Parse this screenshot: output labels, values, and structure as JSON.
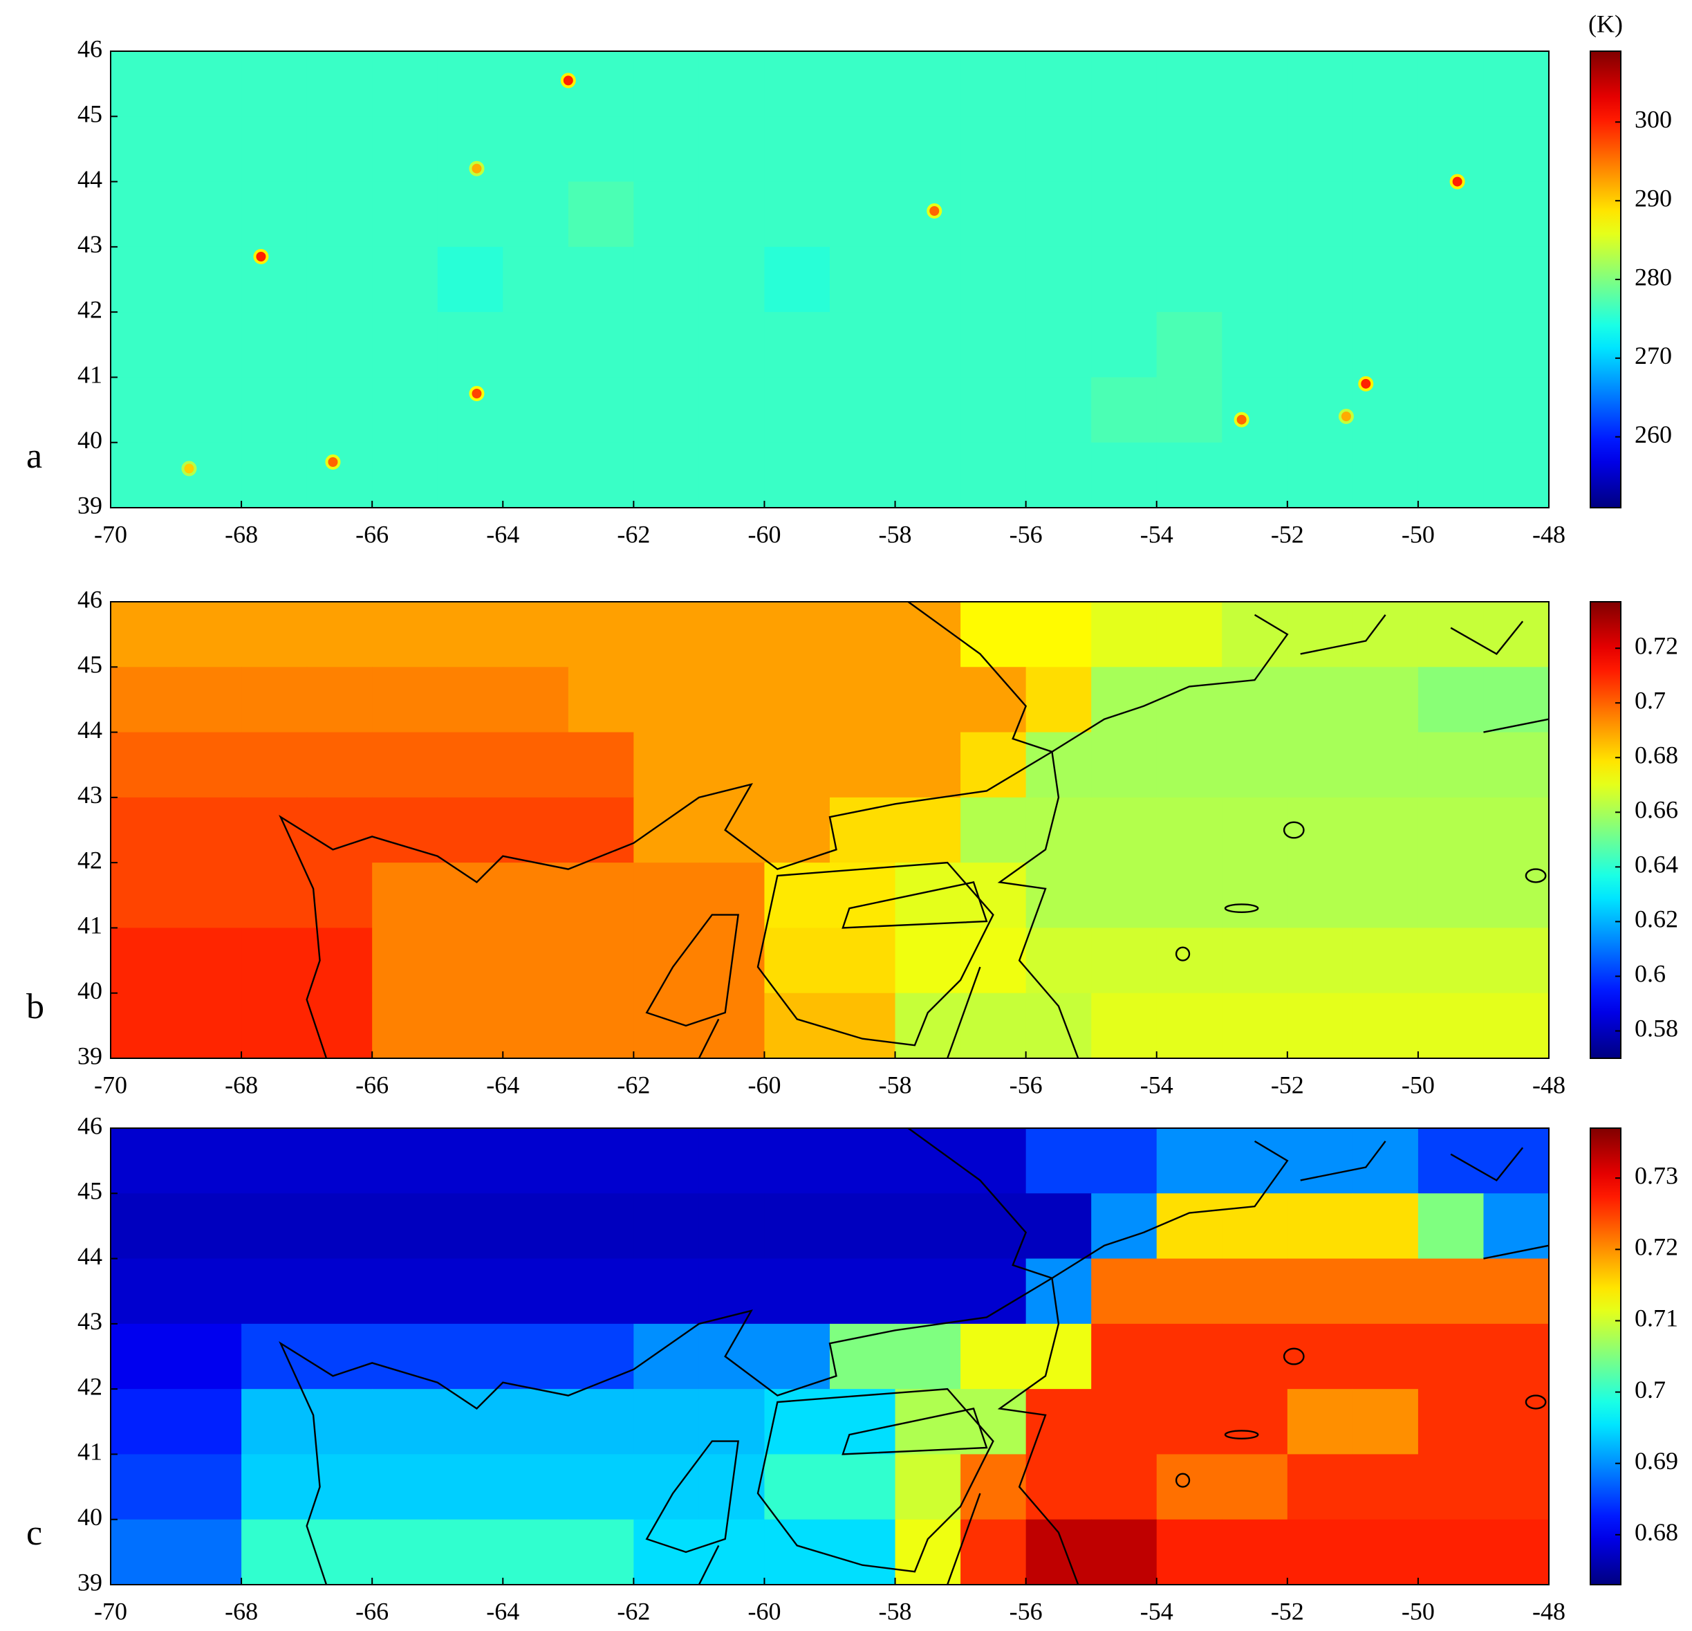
{
  "chart_data": [
    {
      "type": "heatmap",
      "label": "a",
      "colormap": "jet",
      "colorbar_label": "(K)",
      "xlim": [
        -70,
        -48
      ],
      "ylim": [
        39,
        46
      ],
      "xticks": [
        -70,
        -68,
        -66,
        -64,
        -62,
        -60,
        -58,
        -56,
        -54,
        -52,
        -50,
        -48
      ],
      "yticks": [
        39,
        40,
        41,
        42,
        43,
        44,
        45,
        46
      ],
      "clim": [
        251,
        309
      ],
      "cticks": [
        260,
        270,
        280,
        290,
        300
      ],
      "values": [
        [
          276,
          276,
          276,
          276,
          276,
          276,
          276,
          276,
          276,
          276,
          276,
          276,
          276,
          276,
          276,
          276,
          276,
          276,
          276,
          276,
          276,
          276
        ],
        [
          276,
          276,
          276,
          276,
          276,
          276,
          276,
          276,
          276,
          276,
          276,
          276,
          276,
          276,
          276,
          276,
          276,
          276,
          276,
          276,
          276,
          276
        ],
        [
          276,
          276,
          276,
          276,
          276,
          276,
          276,
          277,
          276,
          276,
          276,
          276,
          276,
          276,
          276,
          276,
          276,
          276,
          276,
          276,
          276,
          276
        ],
        [
          276,
          276,
          276,
          276,
          276,
          275,
          276,
          276,
          276,
          276,
          275,
          276,
          276,
          276,
          276,
          276,
          276,
          276,
          276,
          276,
          276,
          276
        ],
        [
          276,
          276,
          276,
          276,
          276,
          276,
          276,
          276,
          276,
          276,
          276,
          276,
          276,
          276,
          276,
          276,
          277,
          276,
          276,
          276,
          276,
          276
        ],
        [
          276,
          276,
          276,
          276,
          276,
          276,
          276,
          276,
          276,
          276,
          276,
          276,
          276,
          276,
          276,
          277,
          277,
          276,
          276,
          276,
          276,
          276
        ],
        [
          276,
          276,
          276,
          276,
          276,
          276,
          276,
          276,
          276,
          276,
          276,
          276,
          276,
          276,
          276,
          276,
          276,
          276,
          276,
          276,
          276,
          276
        ]
      ],
      "points": {
        "x": [
          -63,
          -64.4,
          -67.7,
          -57.4,
          -49.4,
          -64.4,
          -66.6,
          -50.8,
          -52.7,
          -68.8,
          -51.1
        ],
        "y": [
          45.55,
          44.2,
          42.85,
          43.55,
          44,
          40.75,
          39.7,
          40.9,
          40.35,
          39.6,
          40.4
        ],
        "values": [
          300,
          292,
          300,
          296,
          300,
          298,
          296,
          300,
          296,
          290,
          292
        ]
      }
    },
    {
      "type": "heatmap",
      "label": "b",
      "colormap": "jet",
      "xlim": [
        -70,
        -48
      ],
      "ylim": [
        39,
        46
      ],
      "xticks": [
        -70,
        -68,
        -66,
        -64,
        -62,
        -60,
        -58,
        -56,
        -54,
        -52,
        -50,
        -48
      ],
      "yticks": [
        39,
        40,
        41,
        42,
        43,
        44,
        45,
        46
      ],
      "clim": [
        0.57,
        0.737
      ],
      "cticks": [
        0.58,
        0.6,
        0.62,
        0.64,
        0.66,
        0.68,
        0.7,
        0.72
      ],
      "values": [
        [
          0.69,
          0.69,
          0.69,
          0.69,
          0.69,
          0.69,
          0.69,
          0.69,
          0.69,
          0.69,
          0.69,
          0.69,
          0.69,
          0.675,
          0.675,
          0.67,
          0.67,
          0.665,
          0.665,
          0.665,
          0.665,
          0.665
        ],
        [
          0.695,
          0.695,
          0.695,
          0.695,
          0.695,
          0.695,
          0.695,
          0.69,
          0.69,
          0.69,
          0.69,
          0.69,
          0.69,
          0.69,
          0.68,
          0.66,
          0.66,
          0.66,
          0.66,
          0.66,
          0.655,
          0.655
        ],
        [
          0.7,
          0.7,
          0.7,
          0.7,
          0.7,
          0.7,
          0.7,
          0.7,
          0.69,
          0.69,
          0.69,
          0.69,
          0.69,
          0.68,
          0.66,
          0.66,
          0.66,
          0.66,
          0.66,
          0.66,
          0.66,
          0.66
        ],
        [
          0.705,
          0.705,
          0.705,
          0.705,
          0.705,
          0.705,
          0.705,
          0.705,
          0.69,
          0.69,
          0.69,
          0.68,
          0.68,
          0.662,
          0.662,
          0.662,
          0.662,
          0.662,
          0.662,
          0.662,
          0.662,
          0.662
        ],
        [
          0.705,
          0.705,
          0.705,
          0.705,
          0.695,
          0.695,
          0.695,
          0.695,
          0.695,
          0.695,
          0.678,
          0.678,
          0.67,
          0.67,
          0.662,
          0.662,
          0.662,
          0.662,
          0.662,
          0.662,
          0.662,
          0.662
        ],
        [
          0.71,
          0.71,
          0.71,
          0.71,
          0.695,
          0.695,
          0.695,
          0.695,
          0.695,
          0.695,
          0.68,
          0.68,
          0.672,
          0.672,
          0.667,
          0.667,
          0.667,
          0.667,
          0.667,
          0.667,
          0.667,
          0.667
        ],
        [
          0.71,
          0.71,
          0.71,
          0.71,
          0.695,
          0.695,
          0.695,
          0.695,
          0.695,
          0.695,
          0.685,
          0.685,
          0.665,
          0.665,
          0.665,
          0.67,
          0.67,
          0.67,
          0.67,
          0.67,
          0.67,
          0.67
        ]
      ]
    },
    {
      "type": "heatmap",
      "label": "c",
      "colormap": "jet",
      "xlim": [
        -70,
        -48
      ],
      "ylim": [
        39,
        46
      ],
      "xticks": [
        -70,
        -68,
        -66,
        -64,
        -62,
        -60,
        -58,
        -56,
        -54,
        -52,
        -50,
        -48
      ],
      "yticks": [
        39,
        40,
        41,
        42,
        43,
        44,
        45,
        46
      ],
      "clim": [
        0.673,
        0.737
      ],
      "cticks": [
        0.68,
        0.69,
        0.7,
        0.71,
        0.72,
        0.73
      ],
      "values": [
        [
          0.678,
          0.678,
          0.678,
          0.678,
          0.678,
          0.678,
          0.678,
          0.678,
          0.678,
          0.678,
          0.678,
          0.678,
          0.678,
          0.678,
          0.685,
          0.685,
          0.69,
          0.69,
          0.69,
          0.69,
          0.685,
          0.685
        ],
        [
          0.677,
          0.677,
          0.677,
          0.677,
          0.677,
          0.677,
          0.677,
          0.677,
          0.677,
          0.677,
          0.677,
          0.677,
          0.677,
          0.677,
          0.677,
          0.69,
          0.715,
          0.715,
          0.715,
          0.715,
          0.705,
          0.69
        ],
        [
          0.678,
          0.678,
          0.678,
          0.678,
          0.678,
          0.678,
          0.678,
          0.678,
          0.678,
          0.678,
          0.678,
          0.678,
          0.678,
          0.678,
          0.69,
          0.722,
          0.722,
          0.722,
          0.722,
          0.722,
          0.722,
          0.722
        ],
        [
          0.68,
          0.68,
          0.685,
          0.685,
          0.685,
          0.685,
          0.685,
          0.685,
          0.69,
          0.69,
          0.69,
          0.705,
          0.705,
          0.712,
          0.712,
          0.726,
          0.726,
          0.726,
          0.726,
          0.726,
          0.726,
          0.726
        ],
        [
          0.683,
          0.683,
          0.693,
          0.693,
          0.693,
          0.693,
          0.693,
          0.693,
          0.693,
          0.693,
          0.695,
          0.695,
          0.708,
          0.708,
          0.726,
          0.726,
          0.726,
          0.726,
          0.72,
          0.72,
          0.726,
          0.726
        ],
        [
          0.685,
          0.685,
          0.694,
          0.694,
          0.694,
          0.694,
          0.694,
          0.694,
          0.694,
          0.694,
          0.7,
          0.7,
          0.71,
          0.722,
          0.726,
          0.726,
          0.722,
          0.722,
          0.726,
          0.726,
          0.726,
          0.726
        ],
        [
          0.688,
          0.688,
          0.7,
          0.7,
          0.7,
          0.7,
          0.7,
          0.7,
          0.695,
          0.695,
          0.695,
          0.695,
          0.712,
          0.726,
          0.733,
          0.733,
          0.727,
          0.727,
          0.727,
          0.727,
          0.727,
          0.727
        ]
      ]
    }
  ]
}
